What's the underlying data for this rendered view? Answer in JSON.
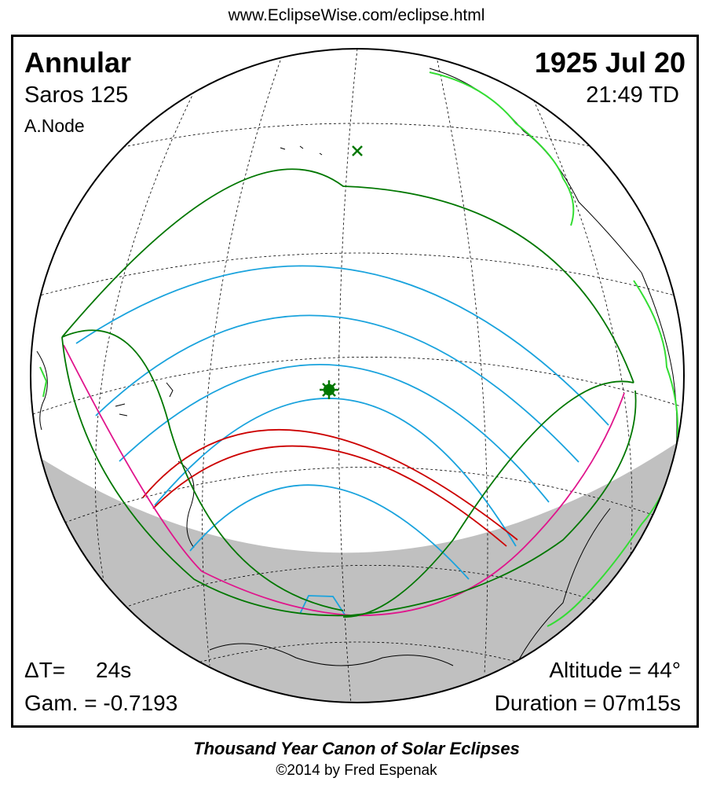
{
  "header": {
    "url": "www.EclipseWise.com/eclipse.html"
  },
  "eclipse": {
    "type": "Annular",
    "saros": "Saros 125",
    "node": "A.Node",
    "date": "1925 Jul 20",
    "time": "21:49 TD",
    "delta_t": "ΔT=     24s",
    "gamma": "Gam. = -0.7193",
    "altitude": "Altitude = 44°",
    "duration": "Duration = 07m15s"
  },
  "footer": {
    "canon": "Thousand Year Canon of Solar Eclipses",
    "copyright": "©2014 by Fred Espenak"
  },
  "colors": {
    "central_path": "#cc0000",
    "penumbral_limits": "#007700",
    "rise_set_limits": "#e0148c",
    "magnitude_contours": "#1aa3dd",
    "coastline_highlight": "#33dd33",
    "night_side": "#c0c0c0",
    "greatest_eclipse_marker": "#007700"
  },
  "icons": {
    "greatest_eclipse": "star-burst-icon",
    "subsolar_point": "cross-x-icon"
  }
}
